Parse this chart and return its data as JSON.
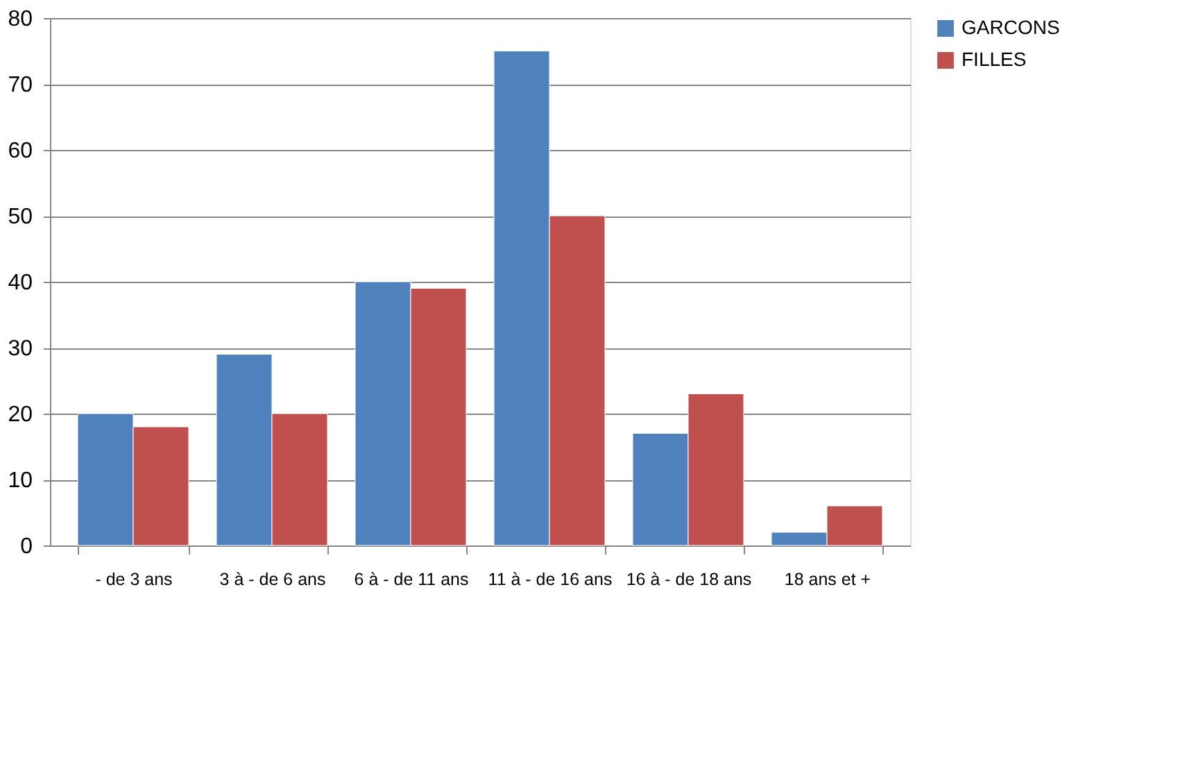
{
  "chart_data": {
    "type": "bar",
    "categories": [
      "- de 3 ans",
      "3 à - de 6 ans",
      "6 à - de 11 ans",
      "11 à - de 16 ans",
      "16 à - de 18 ans",
      "18 ans et +"
    ],
    "series": [
      {
        "name": "GARCONS",
        "color": "#4f81bd",
        "values": [
          20,
          29,
          40,
          75,
          17,
          2
        ]
      },
      {
        "name": "FILLES",
        "color": "#c0504d",
        "values": [
          18,
          20,
          39,
          50,
          23,
          6
        ]
      }
    ],
    "ylim": [
      0,
      80
    ],
    "yticks": [
      0,
      10,
      20,
      30,
      40,
      50,
      60,
      70,
      80
    ],
    "grid": "y",
    "legend": "right"
  }
}
